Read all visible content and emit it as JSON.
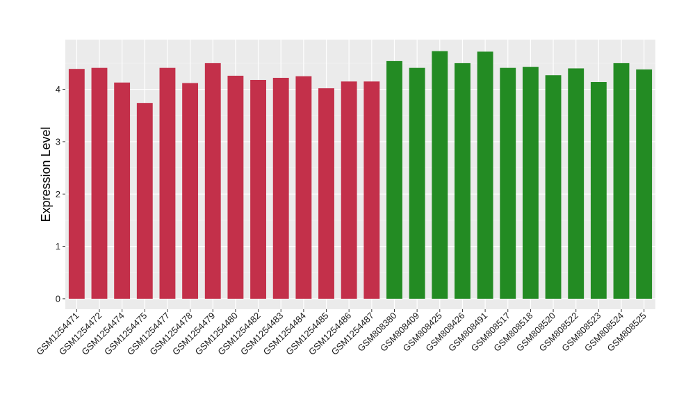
{
  "chart_data": {
    "type": "bar",
    "title": "",
    "xlabel": "",
    "ylabel": "Expression Level",
    "ylim": [
      -0.2,
      4.95
    ],
    "yticks": [
      0,
      1,
      2,
      3,
      4
    ],
    "grid": true,
    "legend": "none",
    "background_color": "#ebebeb",
    "categories": [
      "GSM1254471",
      "GSM1254472",
      "GSM1254474",
      "GSM1254475",
      "GSM1254477",
      "GSM1254478",
      "GSM1254479",
      "GSM1254480",
      "GSM1254482",
      "GSM1254483",
      "GSM1254484",
      "GSM1254485",
      "GSM1254486",
      "GSM1254487",
      "GSM808380",
      "GSM808409",
      "GSM808425",
      "GSM808426",
      "GSM808491",
      "GSM808517",
      "GSM808518",
      "GSM808520",
      "GSM808522",
      "GSM808523",
      "GSM808524",
      "GSM808525"
    ],
    "values": [
      4.39,
      4.41,
      4.13,
      3.74,
      4.41,
      4.12,
      4.5,
      4.26,
      4.18,
      4.22,
      4.25,
      4.02,
      4.15,
      4.15,
      4.54,
      4.41,
      4.73,
      4.5,
      4.72,
      4.41,
      4.43,
      4.27,
      4.4,
      4.14,
      4.5,
      4.38
    ],
    "groups": [
      "A",
      "A",
      "A",
      "A",
      "A",
      "A",
      "A",
      "A",
      "A",
      "A",
      "A",
      "A",
      "A",
      "A",
      "B",
      "B",
      "B",
      "B",
      "B",
      "B",
      "B",
      "B",
      "B",
      "B",
      "B",
      "B"
    ],
    "group_colors": {
      "A": "#c3304a",
      "B": "#238b23"
    }
  }
}
